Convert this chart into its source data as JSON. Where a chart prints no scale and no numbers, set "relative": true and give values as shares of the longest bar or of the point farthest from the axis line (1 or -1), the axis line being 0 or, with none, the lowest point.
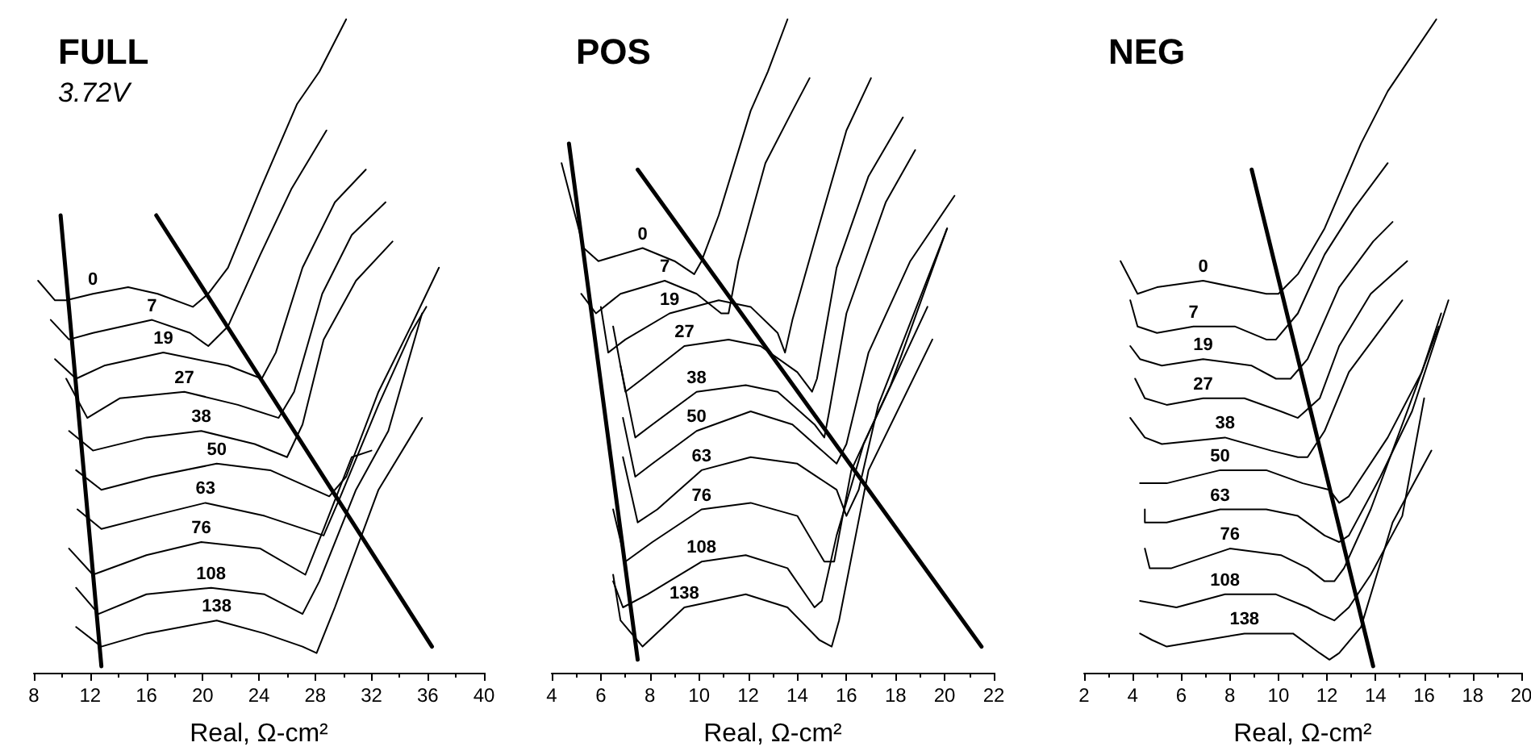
{
  "chart_data": [
    {
      "type": "line",
      "title": "FULL",
      "subtitle": "3.72V",
      "xlabel": "Real, Ω-cm²",
      "xlim": [
        8,
        40
      ],
      "xticks": [
        8,
        12,
        16,
        20,
        24,
        28,
        32,
        36,
        40
      ],
      "relative": true,
      "tick_labels": "x",
      "marker": "none",
      "series": [
        {
          "name": "0",
          "color": "#000000",
          "x": [
            8.3,
            9.5,
            10.3,
            12.2,
            14.7,
            16.8,
            19.3,
            20.4,
            21.8,
            24.1,
            26.7,
            28.3,
            30.2
          ],
          "values": [
            0.6,
            0.57,
            0.57,
            0.58,
            0.59,
            0.58,
            0.56,
            0.58,
            0.62,
            0.74,
            0.87,
            0.92,
            1.0
          ]
        },
        {
          "name": "7",
          "color": "#000000",
          "x": [
            9.2,
            10.5,
            12.2,
            16.4,
            19.1,
            20.4,
            21.8,
            24.1,
            26.3,
            28.8
          ],
          "values": [
            0.54,
            0.51,
            0.52,
            0.54,
            0.52,
            0.5,
            0.53,
            0.64,
            0.74,
            0.83
          ]
        },
        {
          "name": "19",
          "color": "#000000",
          "x": [
            9.5,
            11.0,
            13.0,
            17.2,
            21.8,
            24.2,
            25.2,
            27.1,
            29.4,
            31.6
          ],
          "values": [
            0.48,
            0.45,
            0.47,
            0.49,
            0.47,
            0.45,
            0.49,
            0.62,
            0.72,
            0.77
          ]
        },
        {
          "name": "27",
          "color": "#000000",
          "x": [
            10.3,
            11.8,
            14.1,
            18.7,
            22.5,
            25.4,
            26.5,
            28.5,
            30.6,
            33.0
          ],
          "values": [
            0.45,
            0.39,
            0.42,
            0.43,
            0.41,
            0.39,
            0.43,
            0.58,
            0.67,
            0.72
          ]
        },
        {
          "name": "38",
          "color": "#000000",
          "x": [
            10.5,
            12.2,
            16.0,
            19.9,
            23.7,
            26.0,
            27.1,
            28.6,
            30.9,
            33.5
          ],
          "values": [
            0.37,
            0.34,
            0.36,
            0.37,
            0.35,
            0.33,
            0.38,
            0.51,
            0.6,
            0.66
          ]
        },
        {
          "name": "50",
          "color": "#000000",
          "x": [
            11.0,
            12.8,
            16.4,
            21.0,
            24.8,
            29.0,
            30.2,
            32.5,
            34.8,
            36.8
          ],
          "values": [
            0.31,
            0.28,
            0.3,
            0.32,
            0.31,
            0.27,
            0.3,
            0.43,
            0.53,
            0.62
          ]
        },
        {
          "name": "63",
          "color": "#000000",
          "x": [
            11.1,
            12.8,
            16.4,
            20.2,
            24.4,
            28.6,
            29.8,
            32.5,
            34.8,
            35.9
          ],
          "values": [
            0.25,
            0.22,
            0.24,
            0.26,
            0.24,
            0.21,
            0.27,
            0.41,
            0.52,
            0.56
          ]
        },
        {
          "name": "76",
          "color": "#000000",
          "x": [
            10.5,
            12.2,
            16.0,
            19.9,
            24.1,
            27.3,
            28.6,
            30.6,
            32.0
          ],
          "values": [
            0.19,
            0.15,
            0.18,
            0.2,
            0.19,
            0.15,
            0.22,
            0.33,
            0.34
          ]
        },
        {
          "name": "108",
          "color": "#000000",
          "x": [
            11.0,
            12.6,
            16.0,
            20.6,
            24.4,
            27.1,
            28.3,
            30.9,
            33.2,
            35.6
          ],
          "values": [
            0.13,
            0.09,
            0.12,
            0.13,
            0.12,
            0.09,
            0.14,
            0.28,
            0.37,
            0.55
          ]
        },
        {
          "name": "138",
          "color": "#000000",
          "x": [
            11.0,
            12.8,
            16.0,
            21.0,
            24.4,
            27.1,
            28.1,
            29.4,
            32.5,
            35.6
          ],
          "values": [
            0.07,
            0.04,
            0.06,
            0.08,
            0.06,
            0.04,
            0.03,
            0.1,
            0.28,
            0.39
          ]
        },
        {
          "type": "line",
          "color": "#000000",
          "x": [
            9.9,
            12.8
          ],
          "values": [
            0.7,
            0.01
          ]
        },
        {
          "type": "line",
          "color": "#000000",
          "x": [
            16.7,
            36.3
          ],
          "values": [
            0.7,
            0.04
          ]
        }
      ]
    },
    {
      "type": "line",
      "title": "POS",
      "xlabel": "Real, Ω-cm²",
      "xlim": [
        4,
        22
      ],
      "xticks": [
        4,
        6,
        8,
        10,
        12,
        14,
        16,
        18,
        20,
        22
      ],
      "relative": true,
      "tick_labels": "x",
      "marker": "none",
      "series": [
        {
          "name": "0",
          "color": "#000000",
          "x": [
            4.4,
            5.3,
            5.9,
            7.7,
            9.0,
            9.8,
            10.1,
            10.8,
            12.1,
            12.8,
            13.6
          ],
          "values": [
            0.78,
            0.65,
            0.63,
            0.65,
            0.63,
            0.61,
            0.63,
            0.7,
            0.86,
            0.92,
            1.0
          ]
        },
        {
          "name": "7",
          "color": "#000000",
          "x": [
            5.2,
            5.8,
            6.8,
            8.6,
            9.9,
            10.9,
            11.2,
            11.6,
            12.7,
            13.8,
            14.5
          ],
          "values": [
            0.58,
            0.55,
            0.58,
            0.6,
            0.58,
            0.55,
            0.55,
            0.63,
            0.78,
            0.86,
            0.91
          ]
        },
        {
          "name": "19",
          "color": "#000000",
          "x": [
            6.0,
            6.3,
            7.0,
            8.8,
            10.8,
            12.1,
            13.2,
            13.5,
            13.8,
            14.7,
            16.0,
            17.0
          ],
          "values": [
            0.56,
            0.49,
            0.51,
            0.55,
            0.57,
            0.56,
            0.52,
            0.49,
            0.54,
            0.66,
            0.83,
            0.91
          ]
        },
        {
          "name": "27",
          "color": "#000000",
          "x": [
            6.5,
            7.0,
            7.7,
            9.4,
            11.2,
            12.5,
            14.0,
            14.6,
            14.8,
            15.6,
            16.9,
            18.3
          ],
          "values": [
            0.53,
            0.43,
            0.45,
            0.5,
            0.51,
            0.5,
            0.46,
            0.43,
            0.45,
            0.62,
            0.76,
            0.85
          ]
        },
        {
          "name": "38",
          "color": "#000000",
          "x": [
            6.8,
            7.4,
            8.1,
            9.9,
            11.9,
            13.2,
            14.7,
            15.1,
            15.3,
            16.0,
            17.6,
            18.8
          ],
          "values": [
            0.47,
            0.36,
            0.38,
            0.43,
            0.44,
            0.43,
            0.38,
            0.36,
            0.4,
            0.55,
            0.72,
            0.8
          ]
        },
        {
          "name": "50",
          "color": "#000000",
          "x": [
            6.9,
            7.4,
            8.1,
            9.9,
            12.1,
            13.8,
            15.6,
            16.0,
            16.9,
            18.6,
            20.4
          ],
          "values": [
            0.39,
            0.3,
            0.32,
            0.37,
            0.4,
            0.38,
            0.32,
            0.35,
            0.49,
            0.63,
            0.73
          ]
        },
        {
          "name": "63",
          "color": "#000000",
          "x": [
            6.9,
            7.5,
            8.3,
            10.1,
            12.1,
            14.0,
            15.6,
            16.0,
            16.5,
            17.3,
            20.1
          ],
          "values": [
            0.33,
            0.23,
            0.25,
            0.31,
            0.33,
            0.32,
            0.28,
            0.24,
            0.28,
            0.41,
            0.68
          ]
        },
        {
          "name": "76",
          "color": "#000000",
          "x": [
            6.5,
            7.0,
            8.1,
            10.1,
            12.1,
            14.0,
            15.1,
            15.5,
            16.2,
            17.8,
            20.1
          ],
          "values": [
            0.25,
            0.17,
            0.2,
            0.25,
            0.26,
            0.24,
            0.17,
            0.17,
            0.31,
            0.44,
            0.68
          ]
        },
        {
          "name": "108",
          "color": "#000000",
          "x": [
            6.5,
            6.9,
            7.9,
            10.1,
            11.9,
            13.6,
            14.7,
            15.0,
            15.6,
            16.7,
            19.3
          ],
          "values": [
            0.14,
            0.1,
            0.12,
            0.17,
            0.18,
            0.16,
            0.1,
            0.11,
            0.21,
            0.35,
            0.56
          ]
        },
        {
          "name": "138",
          "color": "#000000",
          "x": [
            6.5,
            6.8,
            7.7,
            9.4,
            11.9,
            13.6,
            14.9,
            15.4,
            15.7,
            16.9,
            19.5
          ],
          "values": [
            0.15,
            0.08,
            0.04,
            0.1,
            0.12,
            0.1,
            0.05,
            0.04,
            0.08,
            0.31,
            0.51
          ]
        },
        {
          "type": "line",
          "color": "#000000",
          "x": [
            4.7,
            7.5
          ],
          "values": [
            0.81,
            0.02
          ]
        },
        {
          "type": "line",
          "color": "#000000",
          "x": [
            7.5,
            21.5
          ],
          "values": [
            0.77,
            0.04
          ]
        }
      ]
    },
    {
      "type": "line",
      "title": "NEG",
      "xlabel": "Real, Ω-cm²",
      "xlim": [
        2,
        20
      ],
      "xticks": [
        2,
        4,
        6,
        8,
        10,
        12,
        14,
        16,
        18,
        20
      ],
      "relative": true,
      "tick_labels": "x",
      "marker": "none",
      "series": [
        {
          "name": "0",
          "color": "#000000",
          "x": [
            3.5,
            4.2,
            5.0,
            6.9,
            8.2,
            9.5,
            10.0,
            10.8,
            11.9,
            13.4,
            14.5,
            16.5
          ],
          "values": [
            0.63,
            0.58,
            0.59,
            0.6,
            0.59,
            0.58,
            0.58,
            0.61,
            0.68,
            0.81,
            0.89,
            1.0
          ]
        },
        {
          "name": "7",
          "color": "#000000",
          "x": [
            3.9,
            4.2,
            5.0,
            6.5,
            8.2,
            9.5,
            9.9,
            10.8,
            11.9,
            13.1,
            14.5
          ],
          "values": [
            0.57,
            0.53,
            0.52,
            0.53,
            0.53,
            0.51,
            0.51,
            0.55,
            0.64,
            0.71,
            0.78
          ]
        },
        {
          "name": "19",
          "color": "#000000",
          "x": [
            3.9,
            4.3,
            5.2,
            6.9,
            8.9,
            9.9,
            10.5,
            11.2,
            12.5,
            13.9,
            14.7
          ],
          "values": [
            0.5,
            0.48,
            0.47,
            0.48,
            0.47,
            0.45,
            0.45,
            0.48,
            0.59,
            0.66,
            0.69
          ]
        },
        {
          "name": "27",
          "color": "#000000",
          "x": [
            4.1,
            4.5,
            5.4,
            6.9,
            8.6,
            10.1,
            10.8,
            11.7,
            12.5,
            13.8,
            15.3
          ],
          "values": [
            0.45,
            0.42,
            0.41,
            0.42,
            0.42,
            0.4,
            0.39,
            0.42,
            0.5,
            0.58,
            0.63
          ]
        },
        {
          "name": "38",
          "color": "#000000",
          "x": [
            3.9,
            4.5,
            5.2,
            7.8,
            9.7,
            10.8,
            11.2,
            11.9,
            12.9,
            15.1
          ],
          "values": [
            0.39,
            0.36,
            0.35,
            0.36,
            0.34,
            0.33,
            0.33,
            0.37,
            0.46,
            0.57
          ]
        },
        {
          "name": "50",
          "color": "#000000",
          "x": [
            4.3,
            5.4,
            7.6,
            9.5,
            11.0,
            12.1,
            12.5,
            12.9,
            14.5,
            15.9,
            16.7
          ],
          "values": [
            0.29,
            0.29,
            0.31,
            0.31,
            0.29,
            0.28,
            0.26,
            0.27,
            0.36,
            0.46,
            0.55
          ]
        },
        {
          "name": "63",
          "color": "#000000",
          "x": [
            4.5,
            4.5,
            5.4,
            7.6,
            9.5,
            10.8,
            11.9,
            12.5,
            12.9,
            14.2,
            15.5,
            17.0
          ],
          "values": [
            0.25,
            0.23,
            0.23,
            0.25,
            0.25,
            0.24,
            0.21,
            0.2,
            0.21,
            0.3,
            0.4,
            0.57
          ]
        },
        {
          "name": "76",
          "color": "#000000",
          "x": [
            4.5,
            4.7,
            5.6,
            8.0,
            10.1,
            11.2,
            11.9,
            12.3,
            12.7,
            13.8,
            16.6
          ],
          "values": [
            0.19,
            0.16,
            0.16,
            0.19,
            0.18,
            0.16,
            0.14,
            0.14,
            0.16,
            0.25,
            0.53
          ]
        },
        {
          "name": "108",
          "color": "#000000",
          "x": [
            4.3,
            5.8,
            7.8,
            9.9,
            11.2,
            11.7,
            12.3,
            12.9,
            13.8,
            15.1,
            16.0
          ],
          "values": [
            0.11,
            0.1,
            0.12,
            0.12,
            0.1,
            0.09,
            0.08,
            0.1,
            0.15,
            0.24,
            0.42
          ]
        },
        {
          "name": "138",
          "color": "#000000",
          "x": [
            4.3,
            4.8,
            5.4,
            8.6,
            10.6,
            11.7,
            12.1,
            12.5,
            13.4,
            14.7,
            16.3
          ],
          "values": [
            0.06,
            0.05,
            0.04,
            0.06,
            0.06,
            0.03,
            0.02,
            0.03,
            0.07,
            0.23,
            0.34
          ]
        },
        {
          "type": "line",
          "color": "#000000",
          "x": [
            8.9,
            13.9
          ],
          "values": [
            0.77,
            0.01
          ]
        }
      ]
    }
  ]
}
